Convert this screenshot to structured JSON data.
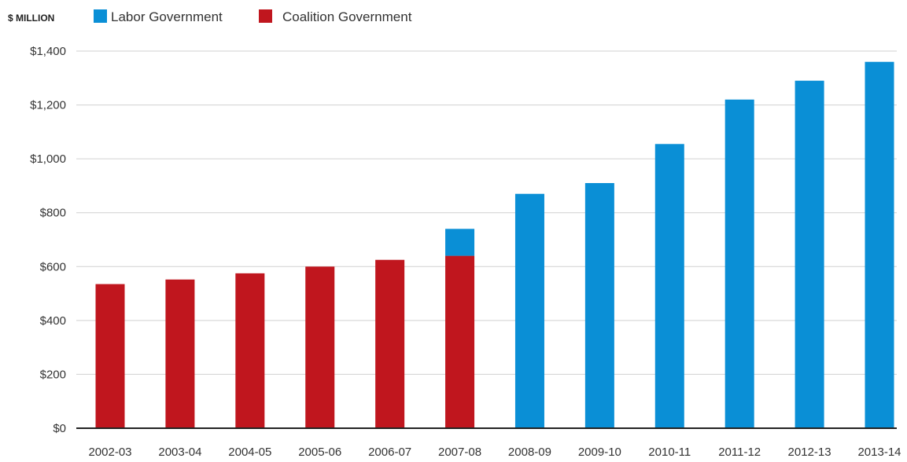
{
  "chart_data": {
    "type": "bar",
    "stacked": true,
    "unit_label": "$ MILLION",
    "categories": [
      "2002-03",
      "2003-04",
      "2004-05",
      "2005-06",
      "2006-07",
      "2007-08",
      "2008-09",
      "2009-10",
      "2010-11",
      "2011-12",
      "2012-13",
      "2013-14"
    ],
    "series": [
      {
        "name": "Coalition Government",
        "color": "#c0161e",
        "values": [
          535,
          552,
          575,
          600,
          625,
          640,
          0,
          0,
          0,
          0,
          0,
          0
        ]
      },
      {
        "name": "Labor Government",
        "color": "#0a8fd6",
        "values": [
          0,
          0,
          0,
          0,
          0,
          100,
          870,
          910,
          1055,
          1220,
          1290,
          1360
        ]
      }
    ],
    "legend_order": [
      "Labor Government",
      "Coalition Government"
    ],
    "legend_position": "top-left",
    "ylim": [
      0,
      1400
    ],
    "yticks": [
      {
        "value": 0,
        "label": "$0"
      },
      {
        "value": 200,
        "label": "$200"
      },
      {
        "value": 400,
        "label": "$400"
      },
      {
        "value": 600,
        "label": "$600"
      },
      {
        "value": 800,
        "label": "$800"
      },
      {
        "value": 1000,
        "label": "$1,000"
      },
      {
        "value": 1200,
        "label": "$1,200"
      },
      {
        "value": 1400,
        "label": "$1,400"
      }
    ],
    "grid": true,
    "title": "",
    "xlabel": "",
    "ylabel": ""
  }
}
